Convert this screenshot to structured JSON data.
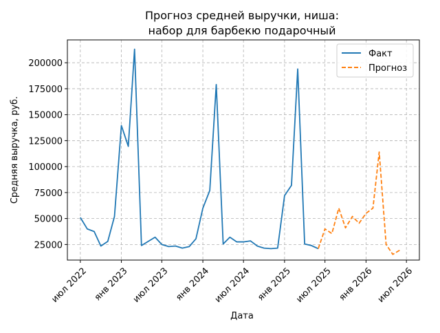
{
  "chart_data": {
    "type": "line",
    "title_lines": [
      "Прогноз средней выручки, ниша:",
      "набор для барбекю подарочный"
    ],
    "xlabel": "Дата",
    "ylabel": "Средняя выручка, руб.",
    "xlim": [
      "2022-05-04",
      "2026-08-28"
    ],
    "ylim": [
      10000,
      222000
    ],
    "grid": true,
    "legend_position": "top-right",
    "x_ticks": [
      {
        "date": "2022-07-01",
        "label": "июл 2022"
      },
      {
        "date": "2023-01-01",
        "label": "янв 2023"
      },
      {
        "date": "2023-07-01",
        "label": "июл 2023"
      },
      {
        "date": "2024-01-01",
        "label": "янв 2024"
      },
      {
        "date": "2024-07-01",
        "label": "июл 2024"
      },
      {
        "date": "2025-01-01",
        "label": "янв 2025"
      },
      {
        "date": "2025-07-01",
        "label": "июл 2025"
      },
      {
        "date": "2026-01-01",
        "label": "янв 2026"
      },
      {
        "date": "2026-07-01",
        "label": "июл 2026"
      }
    ],
    "y_ticks": [
      {
        "value": 25000,
        "label": "25000"
      },
      {
        "value": 50000,
        "label": "50000"
      },
      {
        "value": 75000,
        "label": "75000"
      },
      {
        "value": 100000,
        "label": "100000"
      },
      {
        "value": 125000,
        "label": "125000"
      },
      {
        "value": 150000,
        "label": "150000"
      },
      {
        "value": 175000,
        "label": "175000"
      },
      {
        "value": 200000,
        "label": "200000"
      }
    ],
    "series": [
      {
        "name": "Факт",
        "color": "#1f77b4",
        "style": "solid",
        "points": [
          [
            "2022-07-01",
            51000
          ],
          [
            "2022-08-01",
            40000
          ],
          [
            "2022-09-01",
            37500
          ],
          [
            "2022-10-01",
            23500
          ],
          [
            "2022-11-01",
            28000
          ],
          [
            "2022-12-01",
            52000
          ],
          [
            "2023-01-01",
            139500
          ],
          [
            "2023-02-01",
            119500
          ],
          [
            "2023-03-01",
            213000
          ],
          [
            "2023-04-01",
            24000
          ],
          [
            "2023-05-01",
            28000
          ],
          [
            "2023-06-01",
            32000
          ],
          [
            "2023-07-01",
            25000
          ],
          [
            "2023-08-01",
            23000
          ],
          [
            "2023-09-01",
            23500
          ],
          [
            "2023-10-01",
            21500
          ],
          [
            "2023-11-01",
            23000
          ],
          [
            "2023-12-01",
            30500
          ],
          [
            "2024-01-01",
            60000
          ],
          [
            "2024-02-01",
            77000
          ],
          [
            "2024-03-01",
            179000
          ],
          [
            "2024-04-01",
            25500
          ],
          [
            "2024-05-01",
            32000
          ],
          [
            "2024-06-01",
            27500
          ],
          [
            "2024-07-01",
            27500
          ],
          [
            "2024-08-01",
            28500
          ],
          [
            "2024-09-01",
            23500
          ],
          [
            "2024-10-01",
            21500
          ],
          [
            "2024-11-01",
            21000
          ],
          [
            "2024-12-01",
            21500
          ],
          [
            "2025-01-01",
            72000
          ],
          [
            "2025-02-01",
            82000
          ],
          [
            "2025-03-01",
            194000
          ],
          [
            "2025-04-01",
            25500
          ],
          [
            "2025-05-01",
            24000
          ],
          [
            "2025-06-01",
            21000
          ]
        ]
      },
      {
        "name": "Прогноз",
        "color": "#ff7f0e",
        "style": "dashed",
        "points": [
          [
            "2025-06-01",
            21000
          ],
          [
            "2025-07-01",
            40000
          ],
          [
            "2025-08-01",
            35500
          ],
          [
            "2025-09-01",
            60000
          ],
          [
            "2025-10-01",
            41000
          ],
          [
            "2025-11-01",
            52000
          ],
          [
            "2025-12-01",
            45500
          ],
          [
            "2026-01-01",
            55000
          ],
          [
            "2026-02-01",
            60000
          ],
          [
            "2026-03-01",
            114000
          ],
          [
            "2026-04-01",
            25000
          ],
          [
            "2026-05-01",
            15500
          ],
          [
            "2026-06-01",
            19500
          ]
        ]
      }
    ]
  }
}
